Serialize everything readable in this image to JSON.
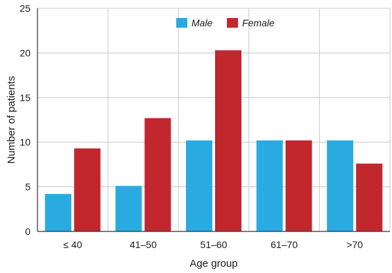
{
  "chart_data": {
    "type": "bar",
    "categories": [
      "≤ 40",
      "41–50",
      "51–60",
      "61–70",
      ">70"
    ],
    "series": [
      {
        "name": "Male",
        "values": [
          4.2,
          5.1,
          10.2,
          10.2,
          10.2
        ],
        "color": "#29abe2"
      },
      {
        "name": "Female",
        "values": [
          9.3,
          12.7,
          20.3,
          10.2,
          7.6
        ],
        "color": "#c1272d"
      }
    ],
    "xlabel": "Age group",
    "ylabel": "Number of patients",
    "ylim": [
      0,
      25
    ],
    "yticks": [
      0,
      5,
      10,
      15,
      20,
      25
    ],
    "grid": true,
    "legend_position": "top-center"
  }
}
